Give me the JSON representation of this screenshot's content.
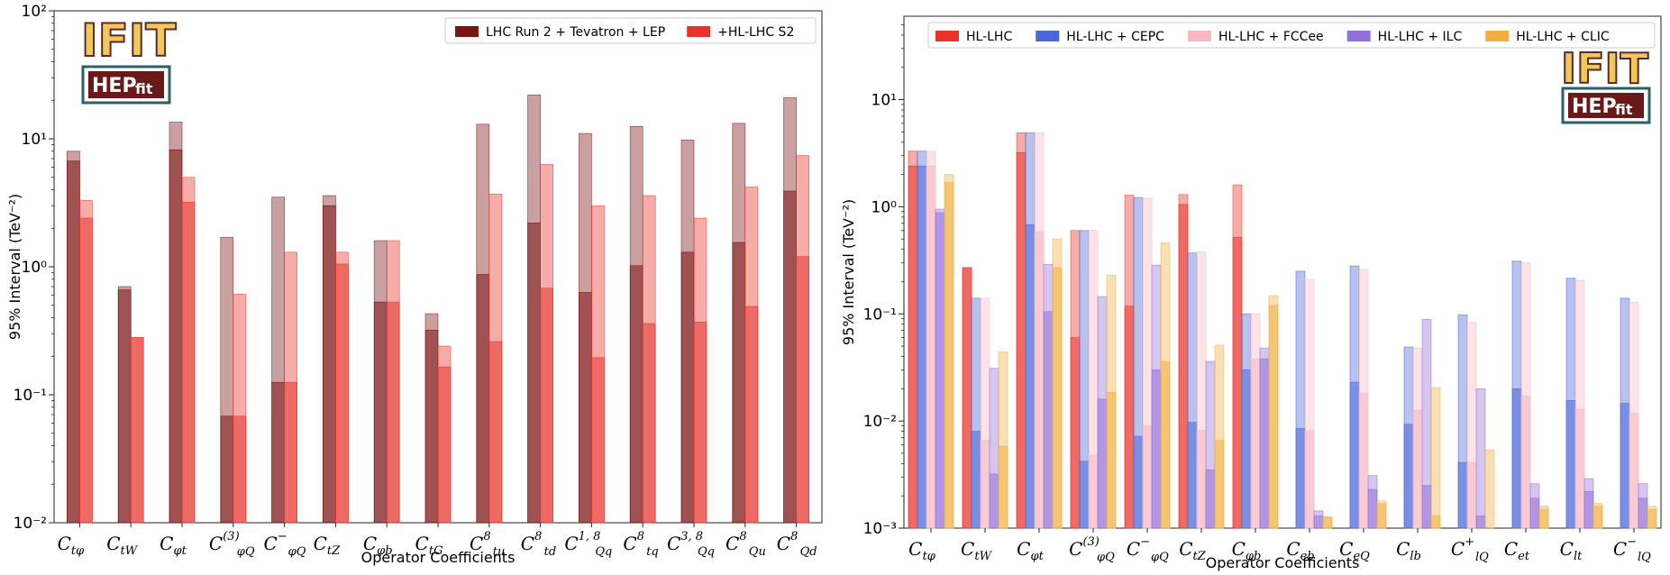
{
  "chart_data": [
    {
      "type": "bar",
      "scale": "log",
      "ylim": [
        0.01,
        100
      ],
      "yticks": [
        "10⁻²",
        "10⁻¹",
        "10⁰",
        "10¹",
        "10²"
      ],
      "xlabel": "Operator Coefficients",
      "ylabel": "95% Interval (TeV⁻²)",
      "legend_position": "top-right",
      "categories": [
        {
          "main": "C",
          "sub": "tφ",
          "sup": ""
        },
        {
          "main": "C",
          "sub": "tW",
          "sup": ""
        },
        {
          "main": "C",
          "sub": "φt",
          "sup": ""
        },
        {
          "main": "C",
          "sub": "φQ",
          "sup": "(3)"
        },
        {
          "main": "C",
          "sub": "φQ",
          "sup": "−"
        },
        {
          "main": "C",
          "sub": "tZ",
          "sup": ""
        },
        {
          "main": "C",
          "sub": "φb",
          "sup": ""
        },
        {
          "main": "C",
          "sub": "tG",
          "sup": ""
        },
        {
          "main": "C",
          "sub": "tu",
          "sup": "8"
        },
        {
          "main": "C",
          "sub": "td",
          "sup": "8"
        },
        {
          "main": "C",
          "sub": "Qq",
          "sup": "1, 8"
        },
        {
          "main": "C",
          "sub": "tq",
          "sup": "8"
        },
        {
          "main": "C",
          "sub": "Qq",
          "sup": "3, 8"
        },
        {
          "main": "C",
          "sub": "Qu",
          "sup": "8"
        },
        {
          "main": "C",
          "sub": "Qd",
          "sup": "8"
        }
      ],
      "series": [
        {
          "name": "LHC Run 2 + Tevatron + LEP",
          "color": "#7a1212",
          "global": [
            8.0,
            0.7,
            13.5,
            1.7,
            3.5,
            3.6,
            1.6,
            0.43,
            13.0,
            22.0,
            11.0,
            12.5,
            9.8,
            13.2,
            21.0
          ],
          "individual": [
            6.7,
            0.66,
            8.2,
            0.068,
            0.125,
            3.0,
            0.53,
            0.32,
            0.87,
            2.2,
            0.63,
            1.02,
            1.3,
            1.55,
            3.9
          ]
        },
        {
          "name": "+HL-LHC S2",
          "color": "#e8332a",
          "global": [
            3.3,
            0.28,
            5.0,
            0.61,
            1.3,
            1.3,
            1.6,
            0.24,
            3.7,
            6.3,
            3.0,
            3.6,
            2.4,
            4.2,
            7.4
          ],
          "individual": [
            2.4,
            0.28,
            3.2,
            0.068,
            0.125,
            1.05,
            0.53,
            0.165,
            0.26,
            0.68,
            0.195,
            0.36,
            0.37,
            0.49,
            1.2
          ]
        }
      ]
    },
    {
      "type": "bar",
      "scale": "log",
      "ylim": [
        0.001,
        60
      ],
      "yticks": [
        "10⁻³",
        "10⁻²",
        "10⁻¹",
        "10⁰",
        "10¹"
      ],
      "xlabel": "Operator Coefficients",
      "ylabel": "95% Interval (TeV⁻²)",
      "legend_position": "top",
      "categories": [
        {
          "main": "C",
          "sub": "tφ",
          "sup": ""
        },
        {
          "main": "C",
          "sub": "tW",
          "sup": ""
        },
        {
          "main": "C",
          "sub": "φt",
          "sup": ""
        },
        {
          "main": "C",
          "sub": "φQ",
          "sup": "(3)"
        },
        {
          "main": "C",
          "sub": "φQ",
          "sup": "−"
        },
        {
          "main": "C",
          "sub": "tZ",
          "sup": ""
        },
        {
          "main": "C",
          "sub": "φb",
          "sup": ""
        },
        {
          "main": "C",
          "sub": "eb",
          "sup": ""
        },
        {
          "main": "C",
          "sub": "eQ",
          "sup": ""
        },
        {
          "main": "C",
          "sub": "lb",
          "sup": ""
        },
        {
          "main": "C",
          "sub": "lQ",
          "sup": "+"
        },
        {
          "main": "C",
          "sub": "et",
          "sup": ""
        },
        {
          "main": "C",
          "sub": "lt",
          "sup": ""
        },
        {
          "main": "C",
          "sub": "lQ",
          "sup": "−"
        }
      ],
      "series": [
        {
          "name": "HL-LHC",
          "color": "#e8332a",
          "global": [
            3.3,
            0.27,
            4.9,
            0.6,
            1.28,
            1.3,
            1.6,
            null,
            null,
            null,
            null,
            null,
            null,
            null
          ],
          "individual": [
            2.4,
            0.27,
            3.2,
            0.06,
            0.118,
            1.05,
            0.52,
            null,
            null,
            null,
            null,
            null,
            null,
            null
          ]
        },
        {
          "name": "HL-LHC + CEPC",
          "color": "#4a66d8",
          "global": [
            3.3,
            0.14,
            4.9,
            0.6,
            1.22,
            0.37,
            0.1,
            0.25,
            0.28,
            0.049,
            0.098,
            0.31,
            0.215,
            0.14
          ],
          "individual": [
            2.4,
            0.008,
            0.68,
            0.0042,
            0.0072,
            0.0097,
            0.03,
            0.0085,
            0.023,
            0.0093,
            0.0041,
            0.02,
            0.0155,
            0.0146
          ]
        },
        {
          "name": "HL-LHC + FCCee",
          "color": "#f5b8c4",
          "global": [
            3.3,
            0.14,
            4.9,
            0.6,
            1.2,
            0.38,
            0.1,
            0.21,
            0.26,
            0.048,
            0.083,
            0.3,
            0.205,
            0.128
          ],
          "individual": [
            2.4,
            0.0066,
            0.58,
            0.0048,
            0.009,
            0.0082,
            0.038,
            0.0081,
            0.018,
            0.0126,
            0.0041,
            0.017,
            0.0128,
            0.0118
          ]
        },
        {
          "name": "HL-LHC + ILC",
          "color": "#9370d8",
          "global": [
            0.95,
            0.031,
            0.29,
            0.145,
            0.285,
            0.036,
            0.048,
            0.00145,
            0.0031,
            0.089,
            0.02,
            0.0026,
            0.0029,
            0.0026
          ],
          "individual": [
            0.88,
            0.0032,
            0.105,
            0.016,
            0.03,
            0.0035,
            0.038,
            0.0013,
            0.0023,
            0.0025,
            0.0013,
            0.0019,
            0.0022,
            0.0019
          ]
        },
        {
          "name": "HL-LHC + CLIC",
          "color": "#f0b040",
          "global": [
            2.0,
            0.044,
            0.5,
            0.23,
            0.46,
            0.051,
            0.148,
            0.00128,
            0.0018,
            0.0205,
            0.0054,
            0.0016,
            0.0017,
            0.0016
          ],
          "individual": [
            1.68,
            0.0058,
            0.27,
            0.0185,
            0.036,
            0.0066,
            0.12,
            0.00125,
            0.0017,
            0.0013,
            null,
            0.0015,
            0.0016,
            0.0015
          ]
        }
      ]
    }
  ],
  "logos": {
    "ifit": "IFIT",
    "hep": "HEP",
    "fit": "fit"
  }
}
